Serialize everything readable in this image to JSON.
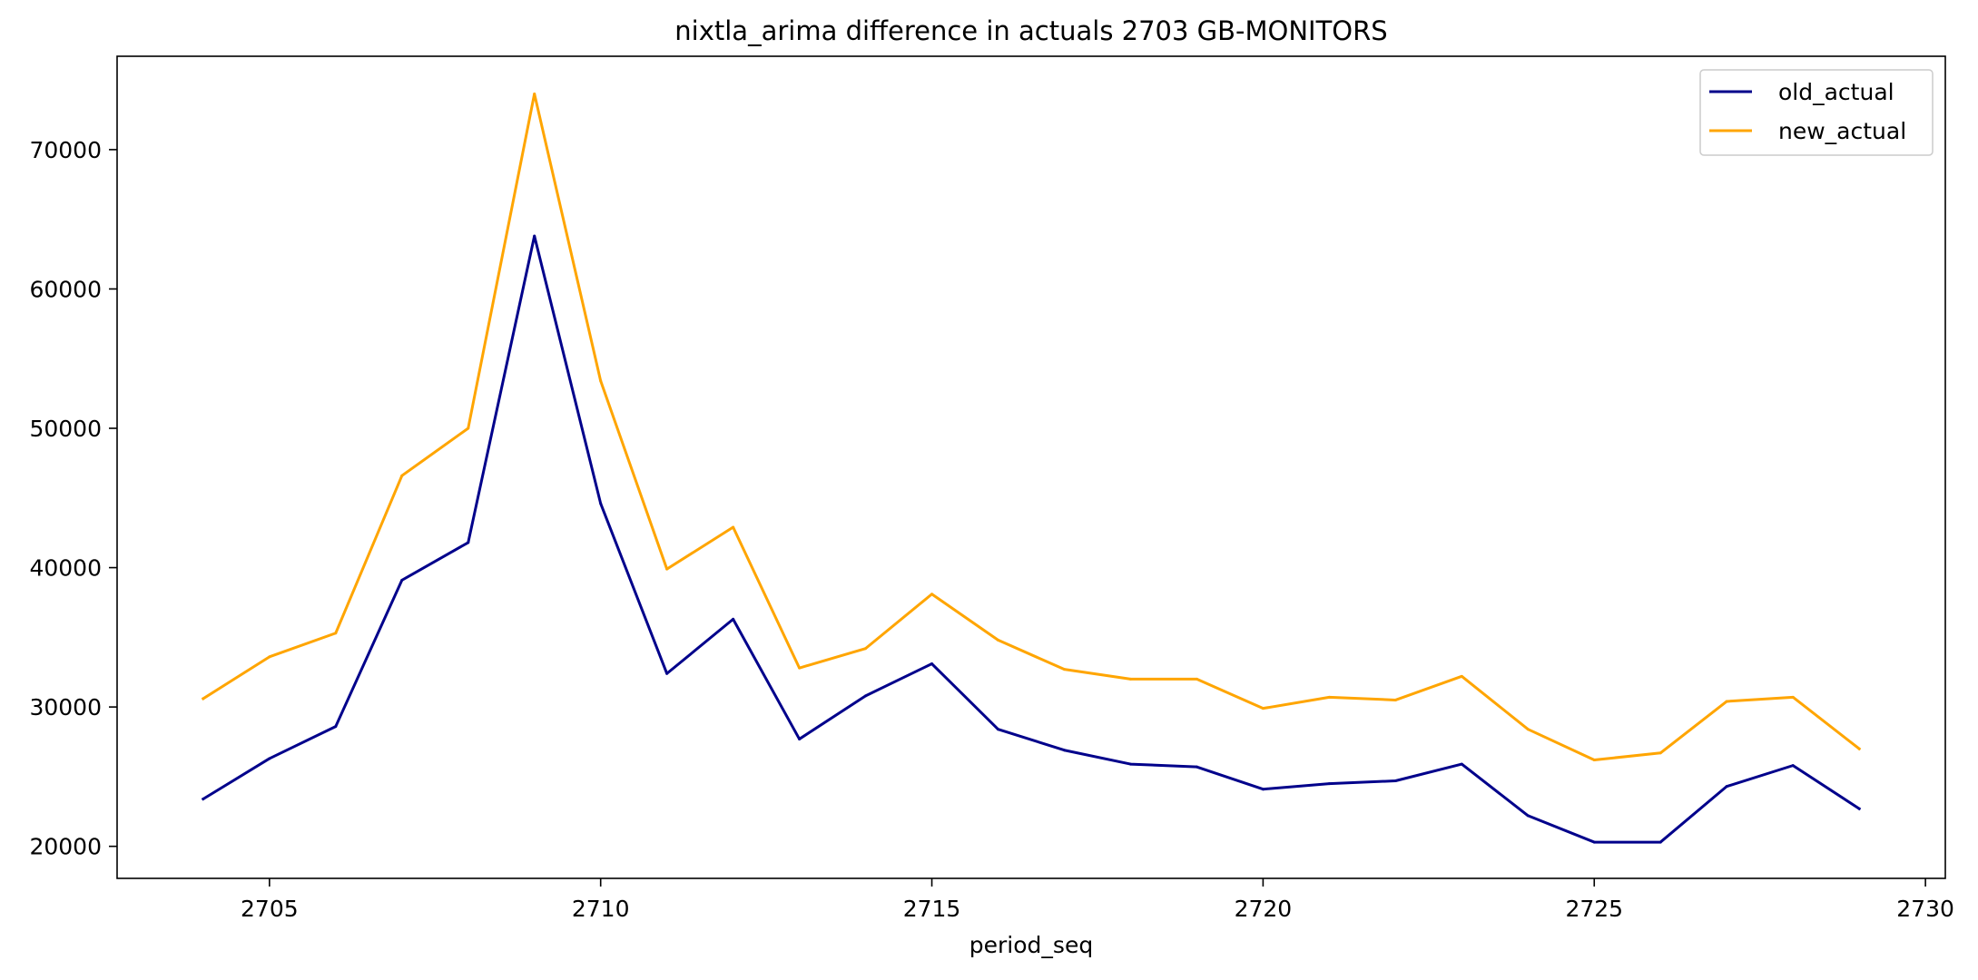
{
  "chart_data": {
    "type": "line",
    "title": "nixtla_arima difference in actuals 2703 GB-MONITORS",
    "xlabel": "period_seq",
    "ylabel": "",
    "x": [
      2704,
      2705,
      2706,
      2707,
      2708,
      2709,
      2710,
      2711,
      2712,
      2713,
      2714,
      2715,
      2716,
      2717,
      2718,
      2719,
      2720,
      2721,
      2722,
      2723,
      2724,
      2725,
      2726,
      2727,
      2728,
      2729
    ],
    "xlim": [
      2702.7,
      2730.3
    ],
    "ylim": [
      17700,
      76700
    ],
    "xticks": [
      2705,
      2710,
      2715,
      2720,
      2725,
      2730
    ],
    "yticks": [
      20000,
      30000,
      40000,
      50000,
      60000,
      70000
    ],
    "grid": false,
    "legend_position": "top-right",
    "series": [
      {
        "name": "old_actual",
        "color": "#00008b",
        "values": [
          23400,
          26300,
          28600,
          39100,
          41800,
          63800,
          44600,
          32400,
          36300,
          27700,
          30800,
          33100,
          28400,
          26900,
          25900,
          25700,
          24100,
          24500,
          24700,
          25900,
          22200,
          20300,
          20300,
          24300,
          25800,
          22700
        ]
      },
      {
        "name": "new_actual",
        "color": "#ffa500",
        "values": [
          30600,
          33600,
          35300,
          46600,
          50000,
          74000,
          53400,
          39900,
          42900,
          32800,
          34200,
          38100,
          34800,
          32700,
          32000,
          32000,
          29900,
          30700,
          30500,
          32200,
          28400,
          26200,
          26700,
          30400,
          30700,
          27000
        ]
      }
    ]
  }
}
